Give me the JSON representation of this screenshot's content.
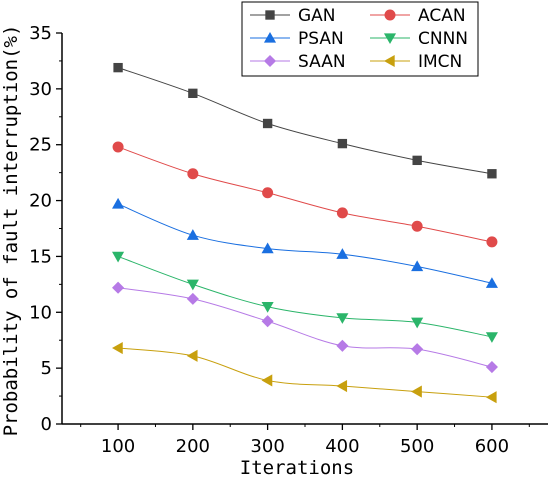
{
  "chart_data": {
    "type": "line",
    "xlabel": "Iterations",
    "ylabel": "Probability of fault interruption(%)",
    "x": [
      100,
      200,
      300,
      400,
      500,
      600
    ],
    "xlim": [
      25,
      675
    ],
    "ylim": [
      0,
      35
    ],
    "x_ticks": [
      100,
      200,
      300,
      400,
      500,
      600
    ],
    "y_ticks": [
      0,
      5,
      10,
      15,
      20,
      25,
      30,
      35
    ],
    "grid": false,
    "legend_position": "top-center",
    "series": [
      {
        "name": "GAN",
        "marker": "square",
        "color": "#444444",
        "values": [
          31.9,
          29.6,
          26.9,
          25.1,
          23.6,
          22.4
        ]
      },
      {
        "name": "ACAN",
        "marker": "circle",
        "color": "#e04a4a",
        "values": [
          24.8,
          22.4,
          20.7,
          18.9,
          17.7,
          16.3
        ]
      },
      {
        "name": "PSAN",
        "marker": "triangle-up",
        "color": "#1a6fe0",
        "values": [
          19.7,
          16.9,
          15.7,
          15.2,
          14.1,
          12.6
        ]
      },
      {
        "name": "CNNN",
        "marker": "triangle-down",
        "color": "#2bb56a",
        "values": [
          15.0,
          12.5,
          10.5,
          9.5,
          9.1,
          7.8
        ]
      },
      {
        "name": "SAAN",
        "marker": "diamond",
        "color": "#b67ae6",
        "values": [
          12.2,
          11.2,
          9.2,
          7.0,
          6.7,
          5.1
        ]
      },
      {
        "name": "IMCN",
        "marker": "triangle-left",
        "color": "#c8a00e",
        "values": [
          6.8,
          6.1,
          3.9,
          3.4,
          2.9,
          2.4
        ]
      }
    ]
  }
}
